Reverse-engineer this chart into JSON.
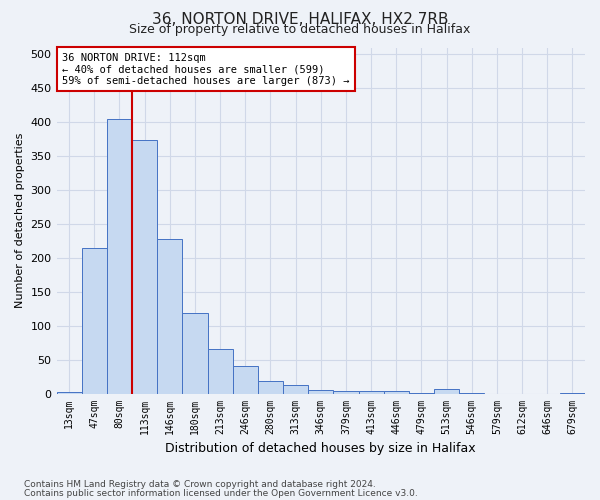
{
  "title1": "36, NORTON DRIVE, HALIFAX, HX2 7RB",
  "title2": "Size of property relative to detached houses in Halifax",
  "xlabel": "Distribution of detached houses by size in Halifax",
  "ylabel": "Number of detached properties",
  "bar_labels": [
    "13sqm",
    "47sqm",
    "80sqm",
    "113sqm",
    "146sqm",
    "180sqm",
    "213sqm",
    "246sqm",
    "280sqm",
    "313sqm",
    "346sqm",
    "379sqm",
    "413sqm",
    "446sqm",
    "479sqm",
    "513sqm",
    "546sqm",
    "579sqm",
    "612sqm",
    "646sqm",
    "679sqm"
  ],
  "bar_values": [
    3,
    215,
    405,
    373,
    228,
    118,
    65,
    40,
    18,
    13,
    5,
    4,
    4,
    4,
    1,
    6,
    1,
    0,
    0,
    0,
    1
  ],
  "bar_color": "#c6d9f1",
  "bar_edge_color": "#4472c4",
  "subject_line_color": "#cc0000",
  "annotation_text": "36 NORTON DRIVE: 112sqm\n← 40% of detached houses are smaller (599)\n59% of semi-detached houses are larger (873) →",
  "annotation_box_color": "#ffffff",
  "annotation_box_edge_color": "#cc0000",
  "grid_color": "#d0d8e8",
  "bg_color": "#eef2f8",
  "ylim": [
    0,
    510
  ],
  "yticks": [
    0,
    50,
    100,
    150,
    200,
    250,
    300,
    350,
    400,
    450,
    500
  ],
  "footnote1": "Contains HM Land Registry data © Crown copyright and database right 2024.",
  "footnote2": "Contains public sector information licensed under the Open Government Licence v3.0."
}
